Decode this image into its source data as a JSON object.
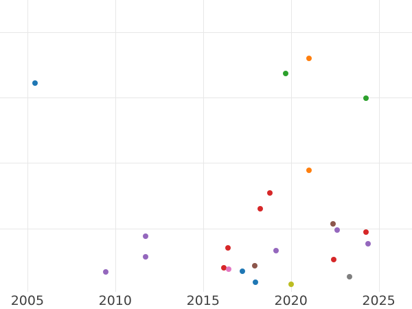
{
  "chart_data": {
    "type": "scatter",
    "title": "",
    "xlabel": "",
    "ylabel": "",
    "grid": true,
    "legend": "none",
    "y_axis_unlabeled": true,
    "x_tick_labels": [
      "2005",
      "2010",
      "2015",
      "2020",
      "2025"
    ],
    "x_tick_years": [
      2005,
      2010,
      2015,
      2020,
      2025
    ],
    "y_gridline_values": [
      1,
      2,
      3,
      4
    ],
    "xlim": [
      2003.44,
      2026.89
    ],
    "ylim": [
      -0.234,
      4.493
    ],
    "marker_size_px": 8,
    "series": [
      {
        "name": "series-blue",
        "color": "#1f77b4",
        "points": [
          [
            2005.43,
            3.22
          ],
          [
            2017.23,
            0.34
          ],
          [
            2017.98,
            0.18
          ]
        ]
      },
      {
        "name": "series-orange",
        "color": "#ff7f0e",
        "points": [
          [
            2021.03,
            3.6
          ],
          [
            2021.03,
            1.89
          ]
        ]
      },
      {
        "name": "series-green",
        "color": "#2ca02c",
        "points": [
          [
            2019.7,
            3.37
          ],
          [
            2024.27,
            2.99
          ]
        ]
      },
      {
        "name": "series-red",
        "color": "#d62728",
        "points": [
          [
            2018.8,
            1.54
          ],
          [
            2018.25,
            1.3
          ],
          [
            2024.27,
            0.94
          ],
          [
            2016.41,
            0.7
          ],
          [
            2022.43,
            0.52
          ],
          [
            2016.18,
            0.4
          ]
        ]
      },
      {
        "name": "series-purple",
        "color": "#9467bd",
        "points": [
          [
            2022.63,
            0.97
          ],
          [
            2011.72,
            0.88
          ],
          [
            2024.39,
            0.76
          ],
          [
            2019.15,
            0.66
          ],
          [
            2011.72,
            0.57
          ],
          [
            2009.46,
            0.33
          ]
        ]
      },
      {
        "name": "series-brown",
        "color": "#8c564b",
        "points": [
          [
            2022.39,
            1.07
          ],
          [
            2017.94,
            0.43
          ]
        ]
      },
      {
        "name": "series-pink",
        "color": "#e377c2",
        "points": [
          [
            2016.45,
            0.38
          ]
        ]
      },
      {
        "name": "series-gray",
        "color": "#7f7f7f",
        "points": [
          [
            2023.33,
            0.26
          ]
        ]
      },
      {
        "name": "series-olive",
        "color": "#bcbd22",
        "points": [
          [
            2020.01,
            0.14
          ]
        ]
      }
    ]
  },
  "colors": {
    "background": "#ffffff",
    "gridline": "#e7e7e7",
    "tick_label": "#3f3f3f"
  }
}
